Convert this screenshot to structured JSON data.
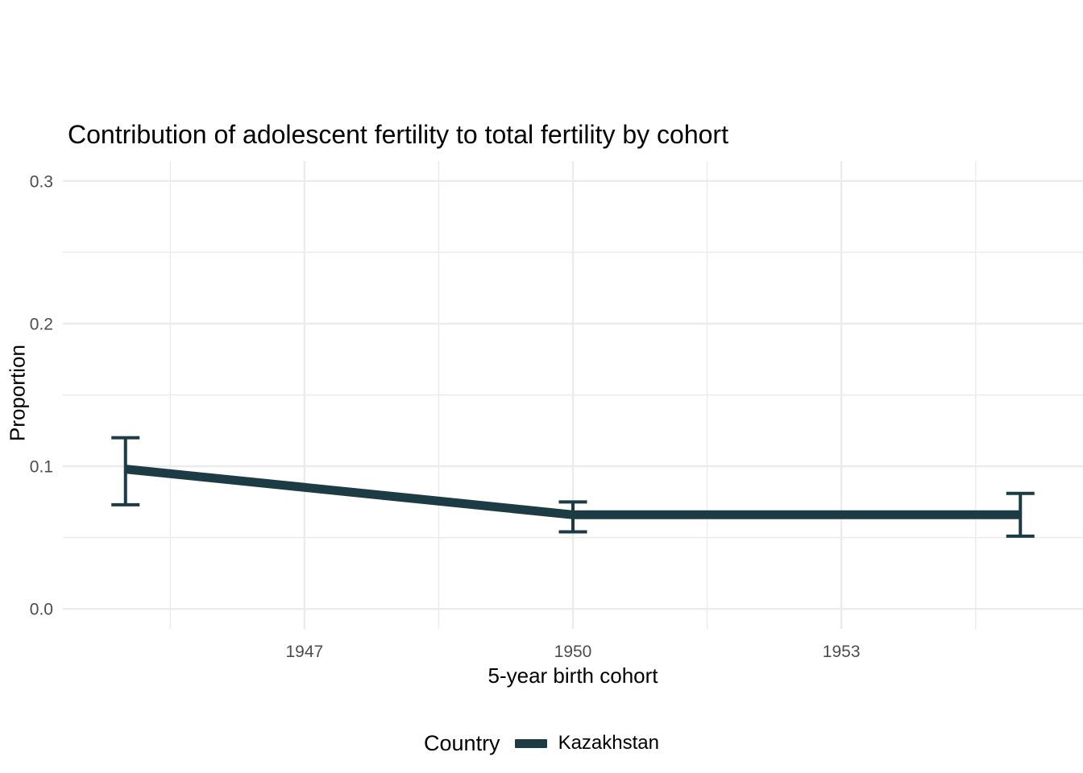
{
  "chart_data": {
    "type": "line",
    "title": "Contribution of adolescent fertility to total fertility by cohort",
    "xlabel": "5-year birth cohort",
    "ylabel": "Proportion",
    "xlim": [
      1944.3,
      1955.7
    ],
    "ylim": [
      -0.014,
      0.314
    ],
    "grid": true,
    "x_tick_values": [
      1947,
      1950,
      1953
    ],
    "x_tick_labels": [
      "1947",
      "1950",
      "1953"
    ],
    "y_tick_values": [
      0.0,
      0.1,
      0.2,
      0.3
    ],
    "y_tick_labels": [
      "0.0",
      "0.1",
      "0.2",
      "0.3"
    ],
    "x_minor_gridlines": [
      1945.5,
      1948.5,
      1951.5,
      1954.5
    ],
    "y_minor_gridlines": [
      0.05,
      0.15,
      0.25
    ],
    "legend": {
      "title": "Country",
      "position": "bottom",
      "entries": [
        {
          "label": "Kazakhstan",
          "color": "#1d3b45"
        }
      ]
    },
    "series": [
      {
        "name": "Kazakhstan",
        "color": "#1d3b45",
        "x": [
          1945,
          1950,
          1955
        ],
        "y": [
          0.098,
          0.066,
          0.066
        ],
        "ci_low": [
          0.073,
          0.054,
          0.051
        ],
        "ci_high": [
          0.12,
          0.075,
          0.081
        ]
      }
    ],
    "colors": {
      "background": "#ffffff",
      "grid_major": "#ebebeb",
      "grid_minor": "#ebebeb",
      "tick_label": "#4d4d4d",
      "text": "#000000"
    }
  }
}
